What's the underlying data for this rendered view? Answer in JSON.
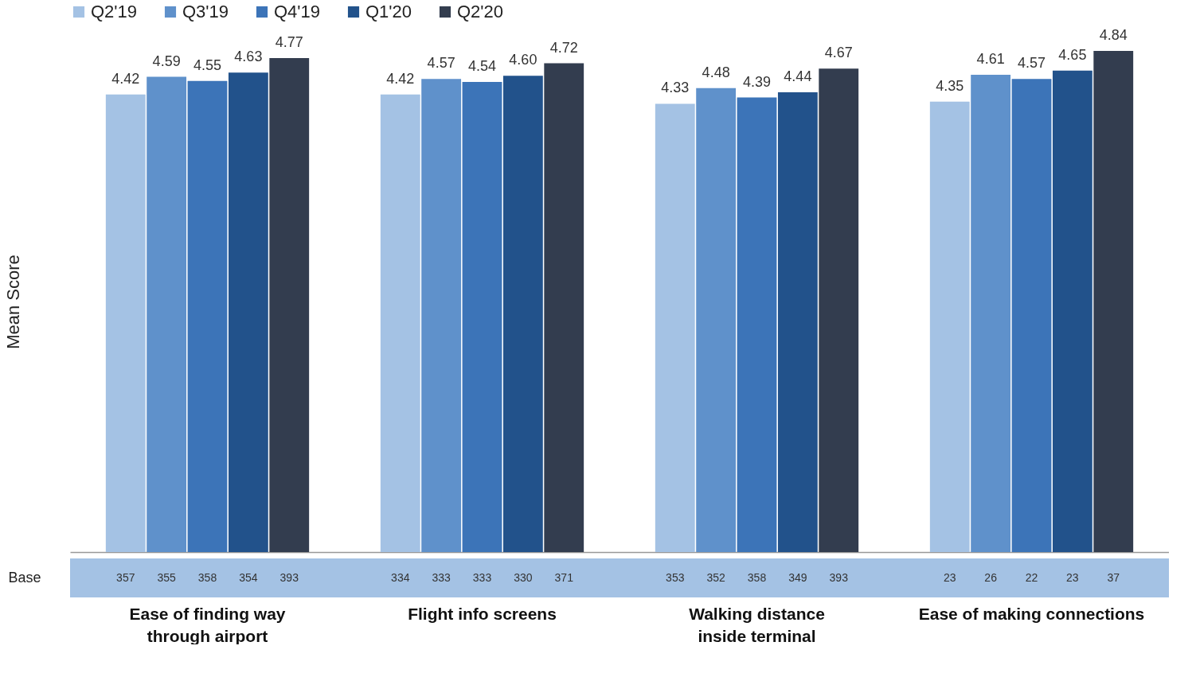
{
  "chart_data": {
    "type": "bar",
    "ylabel": "Mean Score",
    "categories": [
      "Ease of finding way through airport",
      "Flight info screens",
      "Walking distance inside terminal",
      "Ease of making connections"
    ],
    "series": [
      {
        "name": "Q2'19",
        "color": "#a4c2e4",
        "values": [
          4.42,
          4.42,
          4.33,
          4.35
        ],
        "value_labels": [
          "4.42",
          "4.42",
          "4.33",
          "4.35"
        ]
      },
      {
        "name": "Q3'19",
        "color": "#5f91cb",
        "values": [
          4.59,
          4.57,
          4.48,
          4.61
        ],
        "value_labels": [
          "4.59",
          "4.57",
          "4.48",
          "4.61"
        ]
      },
      {
        "name": "Q4'19",
        "color": "#3c74b8",
        "values": [
          4.55,
          4.54,
          4.39,
          4.57
        ],
        "value_labels": [
          "4.55",
          "4.54",
          "4.39",
          "4.57"
        ]
      },
      {
        "name": "Q1'20",
        "color": "#22528b",
        "values": [
          4.63,
          4.6,
          4.44,
          4.65
        ],
        "value_labels": [
          "4.63",
          "4.60",
          "4.44",
          "4.65"
        ]
      },
      {
        "name": "Q2'20",
        "color": "#333d4f",
        "values": [
          4.77,
          4.72,
          4.67,
          4.84
        ],
        "value_labels": [
          "4.77",
          "4.72",
          "4.67",
          "4.84"
        ]
      }
    ],
    "legend": "top",
    "grid": false,
    "annotations": [
      "Base",
      "357",
      "355",
      "358",
      "354",
      "393",
      "334",
      "333",
      "333",
      "330",
      "371",
      "353",
      "352",
      "358",
      "349",
      "393",
      "23",
      "26",
      "22",
      "23",
      "37"
    ]
  }
}
